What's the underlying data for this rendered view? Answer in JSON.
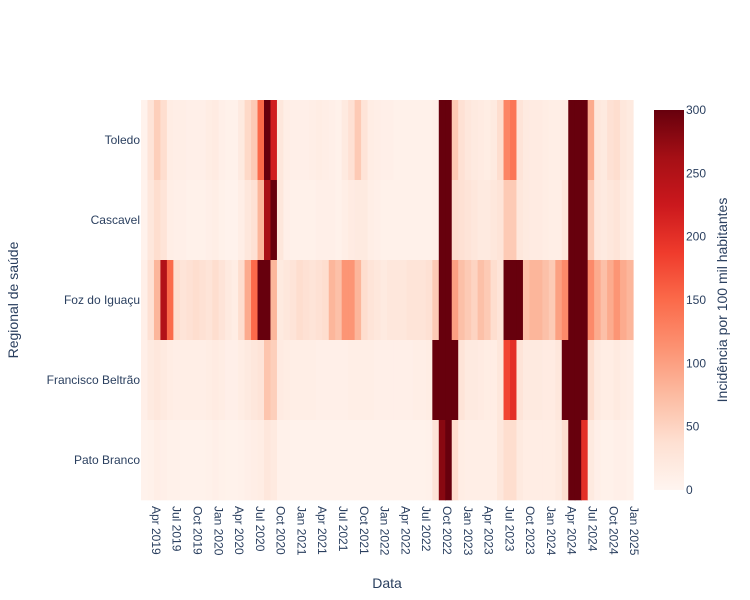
{
  "chart_data": {
    "type": "heatmap",
    "title": "",
    "xlabel": "Data",
    "ylabel": "Regional de saúde",
    "x_tick_labels": [
      "Apr 2019",
      "Jul 2019",
      "Oct 2019",
      "Jan 2020",
      "Apr 2020",
      "Jul 2020",
      "Oct 2020",
      "Jan 2021",
      "Apr 2021",
      "Jul 2021",
      "Oct 2021",
      "Jan 2022",
      "Apr 2022",
      "Jul 2022",
      "Oct 2022",
      "Jan 2023",
      "Apr 2023",
      "Jul 2023",
      "Oct 2023",
      "Jan 2024",
      "Apr 2024",
      "Jul 2024",
      "Oct 2024",
      "Jan 2025"
    ],
    "x_start": "2019-03",
    "x_end": "2025-02",
    "colorbar": {
      "title": "Incidência por 100 mil habitantes",
      "min": 0,
      "max": 300,
      "ticks": [
        0,
        50,
        100,
        150,
        200,
        250,
        300
      ],
      "colorscale": [
        "#fff5f0",
        "#fee0d2",
        "#fcbba1",
        "#fc9272",
        "#fb6a4a",
        "#ef3b2c",
        "#cb181d",
        "#a50f15",
        "#67000d"
      ]
    },
    "rows": [
      {
        "name": "Toledo",
        "values": [
          5,
          30,
          55,
          40,
          15,
          12,
          12,
          10,
          10,
          10,
          15,
          18,
          10,
          8,
          8,
          20,
          45,
          60,
          150,
          320,
          220,
          25,
          12,
          10,
          10,
          10,
          12,
          15,
          12,
          10,
          8,
          20,
          35,
          60,
          30,
          15,
          12,
          10,
          10,
          8,
          8,
          8,
          8,
          8,
          8,
          10,
          350,
          320,
          60,
          35,
          25,
          20,
          18,
          15,
          20,
          40,
          125,
          140,
          30,
          20,
          18,
          18,
          15,
          12,
          12,
          15,
          350,
          400,
          320,
          90,
          25,
          20,
          35,
          40,
          25,
          20
        ]
      },
      {
        "name": "Cascavel",
        "values": [
          5,
          25,
          40,
          30,
          12,
          10,
          10,
          8,
          8,
          8,
          10,
          12,
          8,
          5,
          5,
          12,
          25,
          35,
          80,
          260,
          300,
          25,
          10,
          8,
          8,
          8,
          8,
          10,
          10,
          10,
          8,
          12,
          18,
          20,
          20,
          12,
          10,
          8,
          8,
          8,
          8,
          8,
          8,
          8,
          8,
          10,
          300,
          330,
          40,
          35,
          30,
          25,
          20,
          20,
          25,
          30,
          60,
          60,
          25,
          20,
          18,
          18,
          15,
          12,
          12,
          25,
          300,
          360,
          320,
          60,
          25,
          20,
          25,
          30,
          20,
          15
        ]
      },
      {
        "name": "Foz do Iguaçu",
        "values": [
          10,
          35,
          80,
          250,
          150,
          40,
          30,
          35,
          40,
          35,
          30,
          40,
          30,
          20,
          15,
          40,
          90,
          150,
          320,
          320,
          80,
          20,
          25,
          30,
          40,
          35,
          30,
          35,
          40,
          80,
          70,
          110,
          110,
          80,
          40,
          30,
          25,
          20,
          25,
          25,
          25,
          30,
          30,
          30,
          35,
          60,
          300,
          400,
          100,
          70,
          60,
          50,
          70,
          60,
          40,
          30,
          300,
          330,
          300,
          70,
          80,
          80,
          70,
          60,
          100,
          120,
          330,
          360,
          340,
          120,
          90,
          70,
          90,
          110,
          90,
          80
        ]
      },
      {
        "name": "Francisco Beltrão",
        "values": [
          10,
          20,
          25,
          20,
          15,
          12,
          12,
          12,
          12,
          12,
          15,
          18,
          15,
          10,
          10,
          15,
          20,
          25,
          30,
          65,
          55,
          18,
          15,
          12,
          12,
          12,
          12,
          10,
          10,
          10,
          10,
          10,
          12,
          12,
          12,
          12,
          10,
          10,
          10,
          10,
          10,
          10,
          12,
          12,
          15,
          300,
          350,
          350,
          300,
          30,
          20,
          20,
          18,
          15,
          15,
          25,
          180,
          200,
          30,
          20,
          20,
          20,
          18,
          18,
          25,
          300,
          400,
          400,
          320,
          40,
          20,
          15,
          15,
          20,
          15,
          12
        ]
      },
      {
        "name": "Pato Branco",
        "values": [
          5,
          8,
          12,
          10,
          8,
          8,
          6,
          6,
          6,
          6,
          8,
          10,
          8,
          6,
          6,
          8,
          10,
          12,
          15,
          25,
          20,
          8,
          8,
          6,
          6,
          6,
          6,
          6,
          6,
          6,
          6,
          6,
          6,
          6,
          6,
          6,
          6,
          6,
          6,
          6,
          6,
          6,
          6,
          6,
          8,
          30,
          280,
          300,
          40,
          15,
          12,
          12,
          12,
          12,
          12,
          25,
          40,
          40,
          20,
          15,
          15,
          15,
          15,
          15,
          20,
          40,
          330,
          380,
          200,
          20,
          10,
          8,
          8,
          10,
          10,
          8
        ]
      }
    ]
  }
}
